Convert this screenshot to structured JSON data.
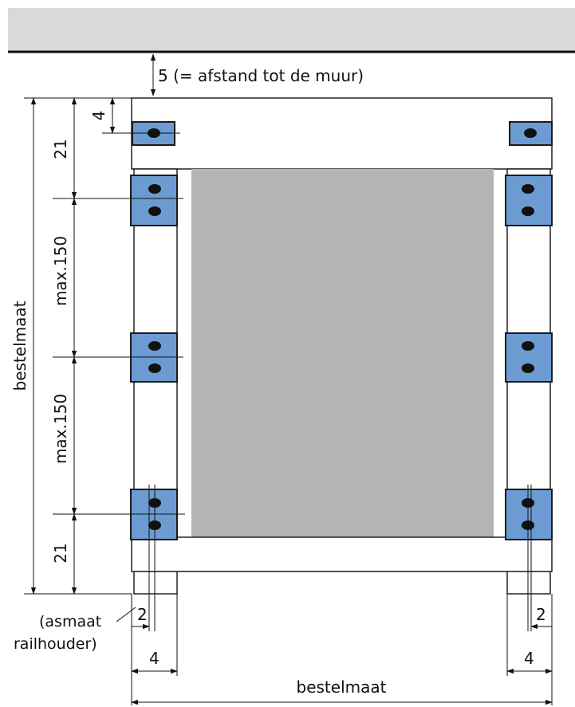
{
  "colors": {
    "header_band": "#d9d9d9",
    "header_rule": "#111111",
    "bracket_fill": "#6c9bd2",
    "panel_fill": "#b3b4b5",
    "line": "#111111"
  },
  "labels": {
    "wall_distance": "5 (= afstand tot de muur)",
    "top_offset": "4",
    "top_section": "21",
    "spacing_upper": "max.150",
    "spacing_lower": "max.150",
    "bottom_section": "21",
    "total_height": "bestelmaat",
    "total_width": "bestelmaat",
    "axis_note_line1": "(asmaat",
    "axis_note_line2": "railhouder)",
    "axis_left": "2",
    "width_left": "4",
    "axis_right": "2",
    "width_right": "4"
  },
  "icons": {
    "bracket": "rail-bracket-icon",
    "hole": "mounting-hole-icon",
    "arrow": "dimension-arrow-icon"
  }
}
